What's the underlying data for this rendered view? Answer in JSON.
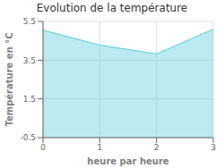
{
  "chart_data": {
    "type": "area",
    "title": "Evolution de la température",
    "xlabel": "heure par heure",
    "ylabel": "Température en °C",
    "x": [
      0,
      1,
      2,
      3
    ],
    "values": [
      5.05,
      4.28,
      3.82,
      5.1
    ],
    "xlim": [
      0,
      3
    ],
    "ylim": [
      -0.5,
      5.5
    ],
    "xticks": [
      0,
      1,
      2,
      3
    ],
    "yticks": [
      -0.5,
      1.5,
      3.5,
      5.5
    ],
    "color": "#55ccdd",
    "grid": true
  }
}
